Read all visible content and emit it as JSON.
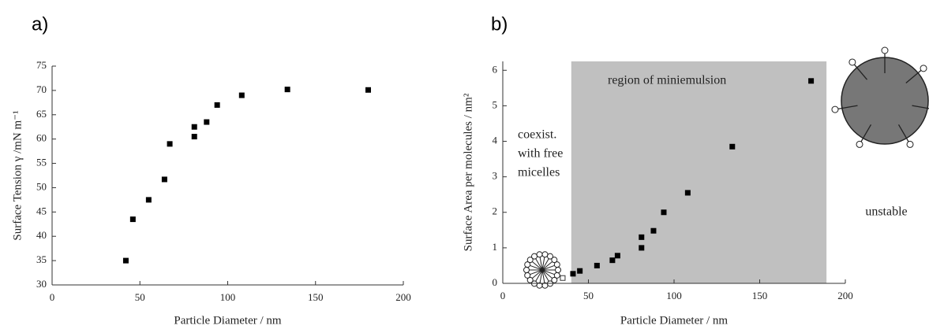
{
  "chart_data": [
    {
      "type": "scatter",
      "panel_label": "a)",
      "x_label": "Particle Diameter / nm",
      "y_label": "Surface Tension γ /mN m⁻¹",
      "x": [
        42,
        46,
        55,
        64,
        67,
        81,
        81,
        88,
        94,
        108,
        134,
        180
      ],
      "y": [
        35,
        43.5,
        47.5,
        51.7,
        59,
        62.5,
        60.5,
        63.5,
        67,
        69,
        70.2,
        70.1
      ],
      "color": "#000000",
      "xlim": [
        0,
        200
      ],
      "xticks": [
        0,
        50,
        100,
        150,
        200
      ],
      "ylim": [
        30,
        75
      ],
      "yticks": [
        30,
        35,
        40,
        45,
        50,
        55,
        60,
        65,
        70,
        75
      ]
    },
    {
      "type": "scatter",
      "panel_label": "b)",
      "x_label": "Particle Diameter / nm",
      "y_label": "Surface Area per molecules / nm²",
      "x": [
        41,
        45,
        55,
        64,
        67,
        81,
        81,
        88,
        94,
        108,
        134,
        180
      ],
      "y": [
        0.27,
        0.35,
        0.5,
        0.65,
        0.78,
        1.0,
        1.3,
        1.48,
        2.0,
        2.55,
        3.85,
        5.7
      ],
      "open_points": {
        "x": [
          35
        ],
        "y": [
          0.15
        ]
      },
      "color": "#000000",
      "shaded_region": {
        "x": [
          40,
          189
        ],
        "color": "#c0c0c0"
      },
      "annotations": [
        "region of miniemulsion",
        "coexist.",
        "with free",
        "micelles",
        "unstable"
      ],
      "xlim": [
        0,
        200
      ],
      "xticks": [
        0,
        50,
        100,
        150,
        200
      ],
      "ylim": [
        0,
        6.25
      ],
      "yticks": [
        0,
        1,
        2,
        3,
        4,
        5,
        6
      ]
    }
  ]
}
